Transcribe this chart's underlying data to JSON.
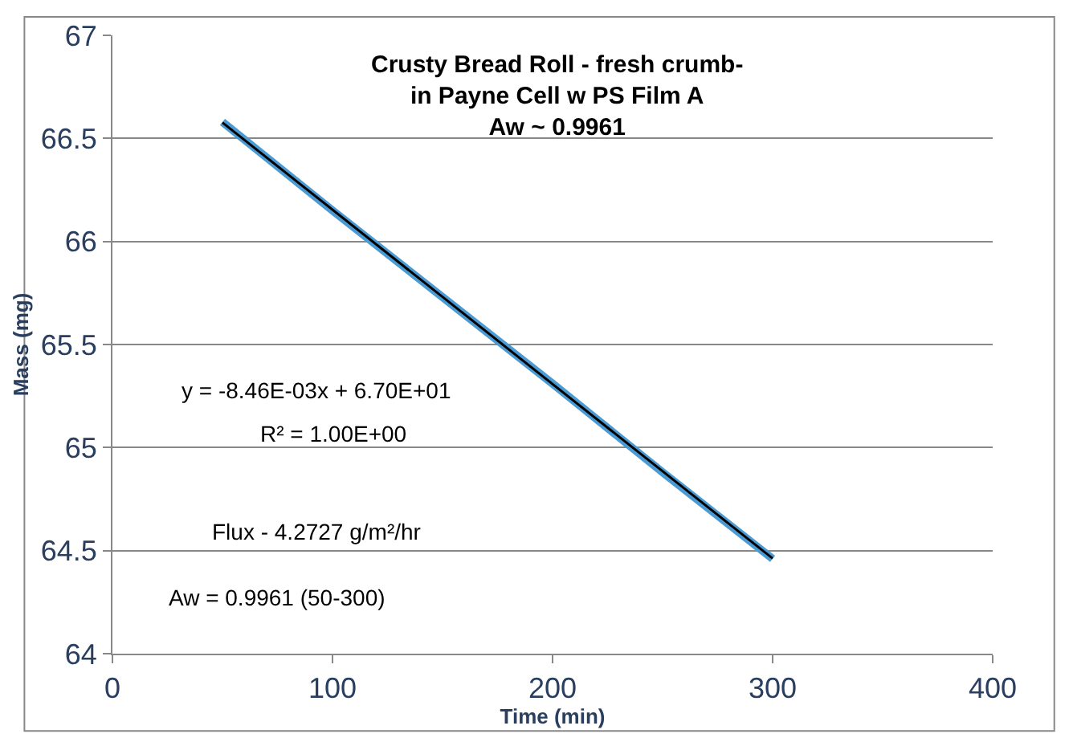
{
  "chart_data": {
    "type": "line",
    "title": "Crusty Bread Roll - fresh crumb-\nin Payne Cell w PS Film A\nAw ~ 0.9961",
    "xlabel": "Time (min)",
    "ylabel": "Mass (mg)",
    "series": [
      {
        "color": "#4a9ad4",
        "x": [
          50,
          100,
          150,
          200,
          250,
          300
        ],
        "values": [
          66.58,
          66.15,
          65.73,
          65.31,
          64.88,
          64.46
        ]
      },
      {
        "color": "#000000",
        "x": [
          50,
          300
        ],
        "values": [
          66.577,
          64.462
        ]
      }
    ],
    "xlim": [
      0,
      400
    ],
    "xticks": [
      0,
      100,
      200,
      300,
      400
    ],
    "ylim": [
      64,
      67
    ],
    "yticks": [
      64,
      64.5,
      65,
      65.5,
      66,
      66.5,
      67
    ],
    "grid": "y",
    "marker": "none",
    "line_style": "solid",
    "annotations": [
      "y = -8.46E-03x + 6.70E+01",
      "R² = 1.00E+00",
      "Flux - 4.2727 g/m²/hr",
      "Aw = 0.9961 (50-300)"
    ]
  }
}
